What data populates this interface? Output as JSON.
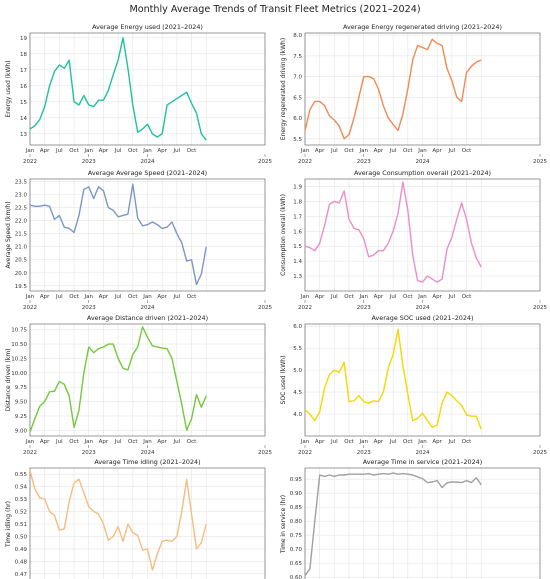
{
  "suptitle": "Monthly Average Trends of Transit Fleet Metrics (2021–2024)",
  "month_tick_labels": [
    "Jan",
    "Apr",
    "Jul",
    "Oct"
  ],
  "year_tick_labels": [
    "2022",
    "2023",
    "2024",
    "2025"
  ],
  "chart_data": [
    {
      "type": "line",
      "title": "Average Energy used (2021–2024)",
      "ylabel": "Energy used (kWh)",
      "color": "#1fc29a",
      "ylim": [
        12.3,
        19.3
      ],
      "yticks": [
        13,
        14,
        15,
        16,
        17,
        18,
        19
      ],
      "x_start": "2022-01",
      "values": [
        13.3,
        13.5,
        13.9,
        14.7,
        16.0,
        16.9,
        17.3,
        17.1,
        17.6,
        15.0,
        14.8,
        15.4,
        14.8,
        14.7,
        15.1,
        15.1,
        15.7,
        16.7,
        17.6,
        19.0,
        17.1,
        14.8,
        13.1,
        13.3,
        13.6,
        13.0,
        12.8,
        13.0,
        14.8,
        15.0,
        15.2,
        15.4,
        15.6,
        14.9,
        14.3,
        13.0,
        12.6
      ]
    },
    {
      "type": "line",
      "title": "Average Energy regenerated driving (2021–2024)",
      "ylabel": "Energy regenerated driving (kWh)",
      "color": "#f08a52",
      "ylim": [
        5.35,
        8.05
      ],
      "yticks": [
        5.5,
        6.0,
        6.5,
        7.0,
        7.5,
        8.0
      ],
      "x_start": "2022-01",
      "values": [
        5.7,
        6.2,
        6.4,
        6.4,
        6.3,
        6.05,
        5.95,
        5.8,
        5.5,
        5.6,
        6.0,
        6.5,
        7.0,
        7.0,
        6.95,
        6.7,
        6.3,
        6.0,
        5.85,
        5.7,
        6.1,
        6.7,
        7.4,
        7.75,
        7.7,
        7.65,
        7.9,
        7.8,
        7.75,
        7.2,
        6.9,
        6.5,
        6.4,
        7.1,
        7.25,
        7.35,
        7.4
      ]
    },
    {
      "type": "line",
      "title": "Average Average Speed (2021–2024)",
      "ylabel": "Average Speed (km/h)",
      "color": "#7b97c8",
      "ylim": [
        19.3,
        23.6
      ],
      "yticks": [
        19.5,
        20.0,
        20.5,
        21.0,
        21.5,
        22.0,
        22.5,
        23.0,
        23.5
      ],
      "x_start": "2022-01",
      "values": [
        22.6,
        22.55,
        22.55,
        22.6,
        22.55,
        22.05,
        22.2,
        21.75,
        21.7,
        21.55,
        22.2,
        23.2,
        23.3,
        22.85,
        23.3,
        23.15,
        22.5,
        22.4,
        22.15,
        22.2,
        22.25,
        23.4,
        22.1,
        21.8,
        21.85,
        21.95,
        21.85,
        21.7,
        21.75,
        21.95,
        21.5,
        21.15,
        20.45,
        20.5,
        19.55,
        19.95,
        21.0
      ]
    },
    {
      "type": "line",
      "title": "Average Consumption overall (2021–2024)",
      "ylabel": "Consumption overall (kWh)",
      "color": "#eb8dcb",
      "ylim": [
        1.2,
        1.95
      ],
      "yticks": [
        1.3,
        1.4,
        1.5,
        1.6,
        1.7,
        1.8,
        1.9
      ],
      "x_start": "2022-01",
      "values": [
        1.5,
        1.49,
        1.47,
        1.52,
        1.64,
        1.78,
        1.8,
        1.79,
        1.87,
        1.68,
        1.62,
        1.61,
        1.55,
        1.43,
        1.44,
        1.47,
        1.47,
        1.52,
        1.6,
        1.72,
        1.93,
        1.74,
        1.44,
        1.27,
        1.26,
        1.3,
        1.28,
        1.26,
        1.28,
        1.48,
        1.56,
        1.68,
        1.79,
        1.68,
        1.52,
        1.42,
        1.36
      ]
    },
    {
      "type": "line",
      "title": "Average Distance driven (2021–2024)",
      "ylabel": "Distance driven (km)",
      "color": "#74c83c",
      "ylim": [
        8.9,
        10.85
      ],
      "yticks": [
        9.0,
        9.25,
        9.5,
        9.75,
        10.0,
        10.25,
        10.5,
        10.75
      ],
      "x_start": "2022-01",
      "values": [
        8.97,
        9.2,
        9.42,
        9.5,
        9.67,
        9.68,
        9.85,
        9.8,
        9.6,
        9.05,
        9.35,
        10.0,
        10.45,
        10.35,
        10.42,
        10.45,
        10.5,
        10.5,
        10.25,
        10.08,
        10.05,
        10.32,
        10.45,
        10.8,
        10.62,
        10.47,
        10.45,
        10.43,
        10.42,
        10.25,
        9.85,
        9.45,
        9.0,
        9.2,
        9.62,
        9.4,
        9.6
      ]
    },
    {
      "type": "line",
      "title": "Average SOC used (2021–2024)",
      "ylabel": "SOC used (kWh)",
      "color": "#f5d800",
      "ylim": [
        3.5,
        6.05
      ],
      "yticks": [
        4.0,
        4.5,
        5.0,
        5.5,
        6.0
      ],
      "x_start": "2022-01",
      "values": [
        4.1,
        4.0,
        3.85,
        4.05,
        4.6,
        4.9,
        5.0,
        4.95,
        5.18,
        4.28,
        4.3,
        4.42,
        4.28,
        4.25,
        4.3,
        4.28,
        4.5,
        5.05,
        5.35,
        5.93,
        5.1,
        4.45,
        3.85,
        3.9,
        4.02,
        3.85,
        3.7,
        3.75,
        4.25,
        4.5,
        4.42,
        4.3,
        4.2,
        3.98,
        3.95,
        3.95,
        3.65
      ]
    },
    {
      "type": "line",
      "title": "Average Time idling (2021–2024)",
      "ylabel": "Time idling (hr)",
      "color": "#f4bd80",
      "ylim": [
        0.465,
        0.555
      ],
      "yticks": [
        0.47,
        0.48,
        0.49,
        0.5,
        0.51,
        0.52,
        0.53,
        0.54,
        0.55
      ],
      "x_start": "2022-01",
      "values": [
        0.553,
        0.538,
        0.531,
        0.53,
        0.52,
        0.517,
        0.505,
        0.506,
        0.528,
        0.543,
        0.546,
        0.535,
        0.524,
        0.52,
        0.518,
        0.51,
        0.497,
        0.5,
        0.508,
        0.496,
        0.51,
        0.503,
        0.501,
        0.489,
        0.49,
        0.473,
        0.486,
        0.496,
        0.497,
        0.496,
        0.5,
        0.52,
        0.546,
        0.518,
        0.49,
        0.495,
        0.51
      ]
    },
    {
      "type": "line",
      "title": "Average Time in service (2021–2024)",
      "ylabel": "Time in service (hr)",
      "color": "#a0a0a0",
      "ylim": [
        0.59,
        0.99
      ],
      "yticks": [
        0.6,
        0.65,
        0.7,
        0.75,
        0.8,
        0.85,
        0.9,
        0.95
      ],
      "x_start": "2022-01",
      "values": [
        0.605,
        0.63,
        0.8,
        0.965,
        0.96,
        0.965,
        0.96,
        0.965,
        0.965,
        0.968,
        0.968,
        0.968,
        0.968,
        0.97,
        0.965,
        0.968,
        0.97,
        0.968,
        0.972,
        0.968,
        0.97,
        0.968,
        0.965,
        0.958,
        0.952,
        0.938,
        0.94,
        0.945,
        0.92,
        0.937,
        0.94,
        0.94,
        0.938,
        0.945,
        0.938,
        0.955,
        0.93
      ]
    }
  ]
}
